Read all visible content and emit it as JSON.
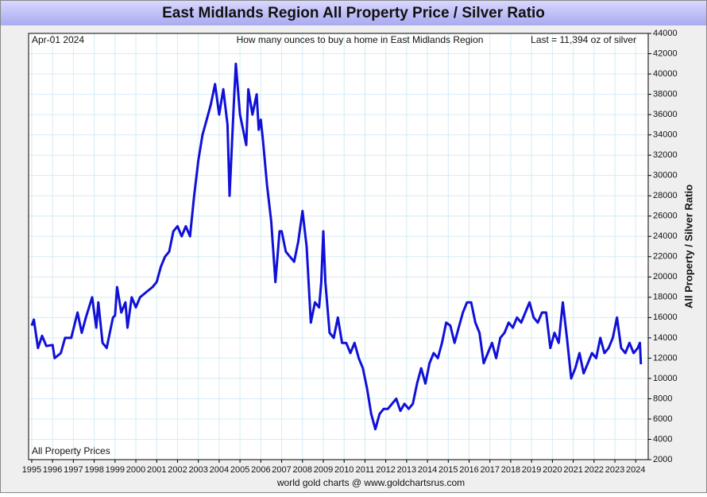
{
  "chart_data": {
    "type": "line",
    "title": "East Midlands Region All Property Price / Silver Ratio",
    "date_label": "Apr-01  2024",
    "subtitle": "How many ounces to buy a home in East Midlands Region",
    "last_label": "Last = 11,394 oz of silver",
    "y_label": "All Property / Silver Ratio",
    "footer": "world gold charts @ www.goldchartsrus.com",
    "xlim": [
      1994.85,
      2024.6
    ],
    "xticks": [
      1995,
      1996,
      1997,
      1998,
      1999,
      2000,
      2001,
      2002,
      2003,
      2004,
      2005,
      2006,
      2007,
      2008,
      2009,
      2010,
      2011,
      2012,
      2013,
      2014,
      2015,
      2016,
      2017,
      2018,
      2019,
      2020,
      2021,
      2022,
      2023,
      2024
    ],
    "ylim": [
      2000,
      44000
    ],
    "yticks": [
      2000,
      4000,
      6000,
      8000,
      10000,
      12000,
      14000,
      16000,
      18000,
      20000,
      22000,
      24000,
      26000,
      28000,
      30000,
      32000,
      34000,
      36000,
      38000,
      40000,
      42000,
      44000
    ],
    "grid": true,
    "x": [
      1995.0,
      1995.1,
      1995.3,
      1995.5,
      1995.7,
      1996.0,
      1996.1,
      1996.4,
      1996.6,
      1996.9,
      1997.2,
      1997.4,
      1997.6,
      1997.9,
      1998.1,
      1998.2,
      1998.4,
      1998.6,
      1998.9,
      1999.0,
      1999.1,
      1999.3,
      1999.5,
      1999.6,
      1999.8,
      2000.0,
      2000.2,
      2000.5,
      2000.8,
      2001.0,
      2001.2,
      2001.4,
      2001.6,
      2001.8,
      2002.0,
      2002.2,
      2002.4,
      2002.6,
      2002.8,
      2003.0,
      2003.2,
      2003.4,
      2003.6,
      2003.8,
      2004.0,
      2004.2,
      2004.4,
      2004.5,
      2004.7,
      2004.8,
      2005.0,
      2005.3,
      2005.4,
      2005.6,
      2005.8,
      2005.9,
      2006.0,
      2006.1,
      2006.3,
      2006.5,
      2006.7,
      2006.9,
      2007.0,
      2007.2,
      2007.4,
      2007.6,
      2007.8,
      2008.0,
      2008.2,
      2008.4,
      2008.6,
      2008.8,
      2008.9,
      2009.0,
      2009.1,
      2009.3,
      2009.5,
      2009.7,
      2009.9,
      2010.1,
      2010.3,
      2010.5,
      2010.7,
      2010.9,
      2011.1,
      2011.3,
      2011.5,
      2011.7,
      2011.9,
      2012.1,
      2012.3,
      2012.5,
      2012.7,
      2012.9,
      2013.1,
      2013.3,
      2013.5,
      2013.7,
      2013.9,
      2014.1,
      2014.3,
      2014.5,
      2014.7,
      2014.9,
      2015.1,
      2015.3,
      2015.5,
      2015.7,
      2015.9,
      2016.1,
      2016.3,
      2016.5,
      2016.7,
      2016.9,
      2017.1,
      2017.3,
      2017.5,
      2017.7,
      2017.9,
      2018.1,
      2018.3,
      2018.5,
      2018.7,
      2018.9,
      2019.1,
      2019.3,
      2019.5,
      2019.7,
      2019.9,
      2020.1,
      2020.3,
      2020.5,
      2020.7,
      2020.9,
      2021.1,
      2021.3,
      2021.5,
      2021.7,
      2021.9,
      2022.1,
      2022.3,
      2022.5,
      2022.7,
      2022.9,
      2023.1,
      2023.3,
      2023.5,
      2023.7,
      2023.9,
      2024.1,
      2024.2,
      2024.25
    ],
    "series": [
      {
        "name": "All Property Prices",
        "color": "#1010d8",
        "values": [
          15200,
          15800,
          13000,
          14200,
          13200,
          13300,
          12000,
          12500,
          14000,
          14000,
          16500,
          14500,
          16000,
          18000,
          15000,
          17500,
          13500,
          13000,
          16000,
          16200,
          19000,
          16500,
          17500,
          15000,
          18000,
          17000,
          18000,
          18500,
          19000,
          19500,
          21000,
          22000,
          22500,
          24500,
          25000,
          24000,
          25000,
          24000,
          28000,
          31500,
          34000,
          35500,
          37000,
          39000,
          36000,
          38500,
          35000,
          28000,
          37000,
          41000,
          36000,
          33000,
          38500,
          36000,
          38000,
          34500,
          35500,
          33500,
          29000,
          25500,
          19500,
          24500,
          24500,
          22500,
          22000,
          21500,
          23500,
          26500,
          23000,
          15500,
          17500,
          17000,
          19500,
          24500,
          19500,
          14500,
          14000,
          16000,
          13500,
          13500,
          12500,
          13500,
          12000,
          11000,
          9000,
          6500,
          5000,
          6500,
          7000,
          7000,
          7500,
          8000,
          6800,
          7500,
          7000,
          7500,
          9500,
          11000,
          9500,
          11500,
          12500,
          12000,
          13500,
          15500,
          15200,
          13500,
          15000,
          16500,
          17500,
          17500,
          15500,
          14500,
          11500,
          12500,
          13500,
          12000,
          14000,
          14500,
          15500,
          15000,
          16000,
          15500,
          16500,
          17500,
          16000,
          15500,
          16500,
          16500,
          13000,
          14500,
          13500,
          17500,
          14000,
          10000,
          11000,
          12500,
          10500,
          11500,
          12500,
          12000,
          14000,
          12500,
          13000,
          14000,
          16000,
          13000,
          12500,
          13500,
          12500,
          13000,
          13500,
          11394
        ]
      }
    ]
  }
}
